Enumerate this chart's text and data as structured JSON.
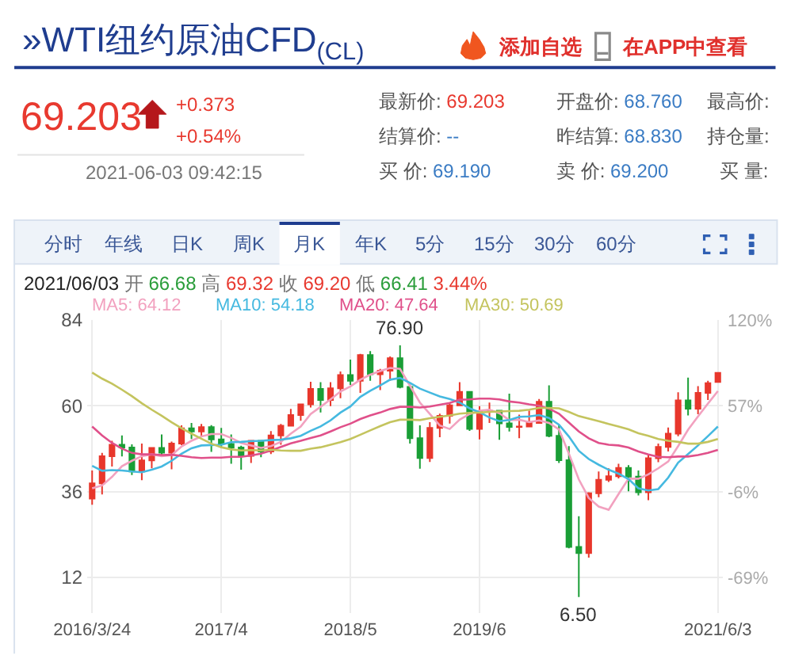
{
  "chart_data": {
    "type": "candlestick",
    "title": "»WTI纽约原油CFD$_{(CL)}$",
    "categories": [
      "2016/3/24",
      null,
      null,
      null,
      null,
      null,
      null,
      null,
      null,
      null,
      null,
      null,
      null,
      "2017/4",
      null,
      null,
      null,
      null,
      null,
      null,
      null,
      null,
      null,
      null,
      null,
      null,
      "2018/5",
      null,
      null,
      null,
      null,
      null,
      null,
      null,
      null,
      null,
      null,
      null,
      null,
      "2019/6",
      null,
      null,
      null,
      null,
      null,
      null,
      null,
      null,
      null,
      null,
      null,
      null,
      null,
      null,
      null,
      null,
      null,
      null,
      null,
      null,
      null,
      null,
      null,
      "2021/6/3"
    ],
    "ohlc": [
      [
        34.0,
        41.9,
        32.3,
        38.3
      ],
      [
        38.3,
        46.8,
        35.2,
        45.9
      ],
      [
        45.9,
        50.2,
        43.0,
        49.1
      ],
      [
        49.1,
        51.7,
        45.8,
        48.3
      ],
      [
        48.3,
        49.2,
        40.6,
        41.6
      ],
      [
        41.6,
        49.4,
        39.2,
        44.7
      ],
      [
        44.7,
        48.4,
        42.5,
        48.2
      ],
      [
        48.2,
        52.0,
        46.2,
        46.9
      ],
      [
        46.9,
        50.0,
        42.2,
        49.4
      ],
      [
        49.4,
        54.5,
        49.0,
        53.7
      ],
      [
        53.7,
        55.2,
        50.7,
        52.8
      ],
      [
        52.8,
        54.9,
        51.2,
        54.0
      ],
      [
        54.0,
        54.6,
        47.1,
        50.6
      ],
      [
        50.6,
        53.8,
        48.2,
        49.3
      ],
      [
        49.3,
        52.0,
        43.8,
        48.3
      ],
      [
        48.3,
        48.8,
        42.1,
        46.0
      ],
      [
        46.0,
        50.4,
        44.0,
        50.2
      ],
      [
        50.2,
        50.4,
        45.6,
        47.2
      ],
      [
        47.2,
        52.9,
        46.5,
        51.7
      ],
      [
        51.7,
        54.9,
        49.1,
        54.4
      ],
      [
        54.4,
        59.1,
        54.2,
        57.4
      ],
      [
        57.4,
        60.5,
        55.8,
        60.4
      ],
      [
        60.4,
        66.7,
        59.5,
        64.7
      ],
      [
        64.7,
        66.6,
        58.1,
        61.6
      ],
      [
        61.6,
        66.6,
        59.9,
        64.9
      ],
      [
        64.9,
        69.6,
        62.1,
        68.6
      ],
      [
        68.6,
        72.9,
        65.8,
        67.0
      ],
      [
        67.0,
        74.5,
        63.6,
        74.2
      ],
      [
        74.2,
        75.3,
        67.0,
        68.8
      ],
      [
        68.8,
        70.3,
        64.4,
        69.8
      ],
      [
        69.8,
        73.8,
        67.0,
        73.3
      ],
      [
        73.3,
        76.9,
        64.9,
        65.3
      ],
      [
        65.3,
        66.0,
        49.4,
        50.9
      ],
      [
        50.9,
        54.5,
        42.4,
        45.4
      ],
      [
        45.4,
        55.4,
        44.3,
        53.8
      ],
      [
        53.8,
        57.8,
        51.2,
        57.2
      ],
      [
        57.2,
        60.7,
        55.0,
        60.1
      ],
      [
        60.1,
        66.6,
        60.0,
        63.9
      ],
      [
        63.9,
        63.9,
        53.0,
        53.5
      ],
      [
        53.5,
        59.9,
        50.6,
        58.5
      ],
      [
        58.5,
        60.9,
        55.2,
        58.6
      ],
      [
        58.6,
        58.8,
        50.5,
        55.1
      ],
      [
        55.1,
        63.4,
        52.8,
        54.1
      ],
      [
        54.1,
        57.5,
        50.9,
        54.2
      ],
      [
        54.2,
        58.7,
        54.0,
        55.2
      ],
      [
        55.2,
        61.9,
        55.0,
        61.1
      ],
      [
        61.1,
        65.7,
        51.2,
        51.6
      ],
      [
        51.6,
        54.7,
        44.0,
        44.8
      ],
      [
        44.8,
        48.7,
        20.1,
        20.5
      ],
      [
        20.5,
        29.1,
        6.5,
        18.8
      ],
      [
        18.8,
        35.8,
        17.5,
        35.5
      ],
      [
        35.5,
        41.6,
        34.4,
        39.3
      ],
      [
        39.3,
        42.5,
        38.7,
        40.3
      ],
      [
        40.3,
        43.8,
        39.7,
        42.6
      ],
      [
        42.6,
        43.4,
        36.1,
        40.2
      ],
      [
        40.2,
        41.9,
        34.9,
        35.8
      ],
      [
        35.8,
        46.3,
        33.6,
        45.3
      ],
      [
        45.3,
        49.4,
        44.2,
        48.5
      ],
      [
        48.5,
        53.9,
        47.2,
        52.2
      ],
      [
        52.2,
        63.8,
        51.5,
        61.5
      ],
      [
        61.5,
        67.9,
        57.3,
        59.2
      ],
      [
        59.2,
        65.5,
        57.6,
        63.6
      ],
      [
        63.6,
        67.0,
        61.6,
        66.3
      ],
      [
        66.68,
        69.32,
        66.41,
        69.2
      ]
    ],
    "colors": [
      "#e8372c",
      "#e8372c",
      "#e8372c",
      "#1a9e36",
      "#1a9e36",
      "#e8372c",
      "#e8372c",
      "#1a9e36",
      "#e8372c",
      "#e8372c",
      "#1a9e36",
      "#e8372c",
      "#1a9e36",
      "#1a9e36",
      "#1a9e36",
      "#1a9e36",
      "#e8372c",
      "#1a9e36",
      "#e8372c",
      "#e8372c",
      "#e8372c",
      "#e8372c",
      "#e8372c",
      "#1a9e36",
      "#e8372c",
      "#e8372c",
      "#1a9e36",
      "#e8372c",
      "#1a9e36",
      "#e8372c",
      "#e8372c",
      "#1a9e36",
      "#1a9e36",
      "#1a9e36",
      "#e8372c",
      "#e8372c",
      "#e8372c",
      "#e8372c",
      "#1a9e36",
      "#e8372c",
      "#e8372c",
      "#1a9e36",
      "#1a9e36",
      "#e8372c",
      "#e8372c",
      "#e8372c",
      "#1a9e36",
      "#1a9e36",
      "#1a9e36",
      "#1a9e36",
      "#e8372c",
      "#e8372c",
      "#e8372c",
      "#e8372c",
      "#1a9e36",
      "#1a9e36",
      "#e8372c",
      "#e8372c",
      "#e8372c",
      "#e8372c",
      "#1a9e36",
      "#e8372c",
      "#e8372c",
      "#e8372c"
    ],
    "series": [
      {
        "type": "line",
        "name": "MA5: 64.12",
        "color": "#f2a1bf",
        "values": [
          36.9,
          37.7,
          40.1,
          43.1,
          44.6,
          45.9,
          46.4,
          45.9,
          46.2,
          48.6,
          50.2,
          51.4,
          52.1,
          52.1,
          51.0,
          49.6,
          48.9,
          48.2,
          48.7,
          49.9,
          52.2,
          54.2,
          57.7,
          59.7,
          61.8,
          64.0,
          65.4,
          67.3,
          68.7,
          69.7,
          70.6,
          70.3,
          65.6,
          60.9,
          57.7,
          54.5,
          53.5,
          56.1,
          57.7,
          58.6,
          58.9,
          57.9,
          56.0,
          56.1,
          55.4,
          55.9,
          55.2,
          53.4,
          46.6,
          39.4,
          34.2,
          31.8,
          30.9,
          35.3,
          39.6,
          39.6,
          40.8,
          42.5,
          44.4,
          48.7,
          53.3,
          57.0,
          60.6,
          64.12
        ]
      },
      {
        "type": "line",
        "name": "MA10: 54.18",
        "color": "#45b9e0",
        "values": [
          43.2,
          41.8,
          42.0,
          41.9,
          41.6,
          41.4,
          42.1,
          43.0,
          44.6,
          46.6,
          48.1,
          48.9,
          49.0,
          49.1,
          49.8,
          49.9,
          50.1,
          50.2,
          50.4,
          50.5,
          50.9,
          51.6,
          53.0,
          54.2,
          55.9,
          58.1,
          59.8,
          62.5,
          64.2,
          65.7,
          67.3,
          67.8,
          66.4,
          64.8,
          63.7,
          62.6,
          61.9,
          60.9,
          59.3,
          58.2,
          56.7,
          55.7,
          56.0,
          56.9,
          57.0,
          57.4,
          56.6,
          54.7,
          51.4,
          47.4,
          45.1,
          43.5,
          42.1,
          41.0,
          39.5,
          36.9,
          36.3,
          36.7,
          39.9,
          44.1,
          46.5,
          48.9,
          51.5,
          54.18
        ]
      },
      {
        "type": "line",
        "name": "MA20: 47.64",
        "color": "#e0508a",
        "values": [
          54.2,
          51.7,
          49.6,
          48.0,
          46.8,
          46.4,
          46.4,
          46.2,
          46.3,
          46.0,
          45.6,
          45.4,
          45.5,
          45.5,
          45.7,
          45.7,
          46.1,
          46.6,
          47.5,
          48.5,
          49.5,
          50.2,
          51.0,
          51.7,
          52.8,
          54.0,
          55.0,
          56.3,
          57.3,
          58.1,
          59.1,
          59.7,
          59.7,
          59.5,
          59.8,
          60.3,
          60.8,
          61.7,
          61.8,
          62.0,
          62.0,
          61.8,
          61.2,
          60.9,
          60.4,
          60.0,
          59.2,
          57.8,
          55.3,
          52.8,
          50.9,
          49.6,
          49.1,
          48.9,
          48.3,
          47.2,
          46.4,
          45.7,
          45.6,
          45.8,
          45.8,
          46.2,
          46.8,
          47.64
        ]
      },
      {
        "type": "line",
        "name": "MA30: 50.69",
        "color": "#c4c45e",
        "values": [
          69.3,
          67.6,
          66.2,
          64.5,
          62.7,
          60.7,
          58.9,
          57.2,
          55.4,
          53.7,
          52.2,
          50.8,
          49.4,
          48.4,
          47.8,
          47.5,
          47.6,
          47.5,
          47.7,
          47.5,
          47.4,
          47.4,
          48.0,
          48.4,
          49.1,
          49.8,
          50.7,
          51.9,
          53.1,
          54.3,
          55.4,
          56.1,
          56.1,
          56.0,
          56.5,
          56.9,
          57.3,
          57.8,
          58.0,
          58.1,
          58.3,
          58.4,
          58.5,
          58.6,
          58.9,
          59.4,
          59.4,
          59.3,
          58.3,
          57.1,
          56.4,
          55.7,
          54.9,
          54.2,
          53.4,
          52.3,
          51.6,
          50.7,
          50.2,
          49.9,
          49.4,
          49.4,
          49.9,
          50.69
        ]
      }
    ],
    "ylim": [
      2,
      84
    ],
    "yticks": [
      12,
      36,
      60,
      84
    ],
    "y2lim": [
      -94.8,
      120
    ],
    "y2ticks": [
      {
        "value": -69,
        "label": "-69%"
      },
      {
        "value": -6,
        "label": "-6%"
      },
      {
        "value": 57,
        "label": "57%"
      },
      {
        "value": 120,
        "label": "120%"
      }
    ],
    "grid": true,
    "legend": "top",
    "annotations": [
      "添加自选",
      "在APP中查看",
      "69.203",
      "+0.373",
      "+0.54%",
      "2021-06-03 09:42:15",
      "最新价: 69.203",
      "结算价: --",
      "买 价: 69.190",
      "开盘价: 68.760",
      "昨结算: 68.830",
      "卖 价: 69.200",
      "最高价:",
      "持仓量:",
      "买 量:",
      "分时",
      "年线",
      "日K",
      "周K",
      "月K",
      "年K",
      "5分",
      "15分",
      "30分",
      "60分",
      "2021/06/03 开 66.68 高 69.32 收 69.20 低 66.41 3.44%",
      {
        "text": "76.90",
        "y": 76.9
      },
      {
        "text": "6.50",
        "y": 6.5
      }
    ]
  }
}
